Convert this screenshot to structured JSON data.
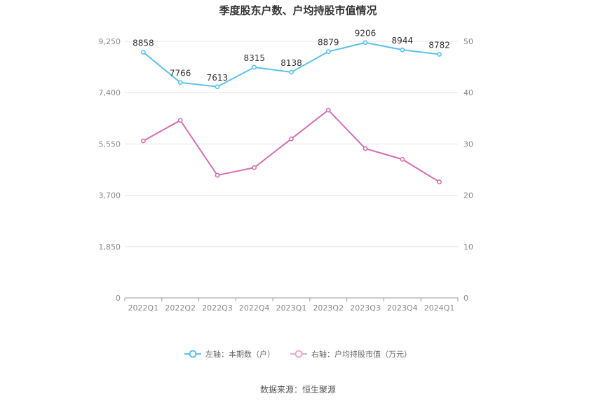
{
  "chart_data": {
    "type": "line",
    "title": "季度股东户数、户均持股市值情况",
    "categories": [
      "2022Q1",
      "2022Q2",
      "2022Q3",
      "2022Q4",
      "2023Q1",
      "2023Q2",
      "2023Q3",
      "2023Q4",
      "2024Q1"
    ],
    "left_axis": {
      "min": 0,
      "max": 9250,
      "ticks": [
        "0",
        "1,850",
        "3,700",
        "5,550",
        "7,400",
        "9,250"
      ]
    },
    "right_axis": {
      "min": 0,
      "max": 50,
      "ticks": [
        "0",
        "10",
        "20",
        "30",
        "40",
        "50"
      ]
    },
    "series": [
      {
        "name": "左轴：本期数（户）",
        "axis": "left",
        "color": "#5bc0eb",
        "values": [
          8858,
          7766,
          7613,
          8315,
          8138,
          8879,
          9206,
          8944,
          8782
        ],
        "labels": [
          "8858",
          "7766",
          "7613",
          "8315",
          "8138",
          "8879",
          "9206",
          "8944",
          "8782"
        ]
      },
      {
        "name": "右轴：户均持股市值（万元）",
        "axis": "right",
        "color": "#d36fb3",
        "values": [
          30.6,
          34.6,
          23.9,
          25.4,
          31.0,
          36.6,
          29.1,
          27.0,
          22.6
        ]
      }
    ],
    "grid": true,
    "legend": "bottom-center",
    "source": "数据来源：恒生聚源"
  }
}
